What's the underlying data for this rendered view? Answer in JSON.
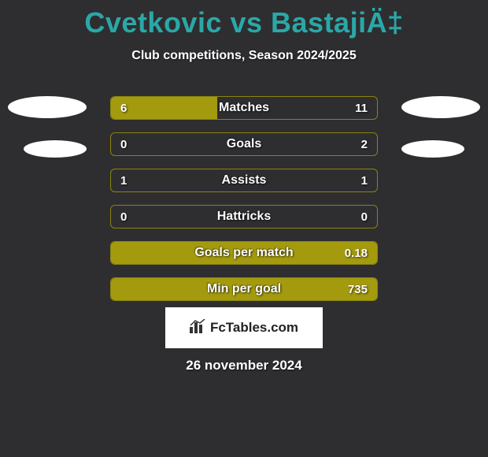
{
  "header": {
    "title": "Cvetkovic vs BastajiÄ‡",
    "subtitle": "Club competitions, Season 2024/2025"
  },
  "chart": {
    "type": "comparison-bars",
    "colors": {
      "bar_fill": "#a49a0e",
      "bar_border": "#8a8410",
      "background": "#2e2e30",
      "title": "#2aa8a8",
      "text": "#ffffff"
    },
    "rows": [
      {
        "label": "Matches",
        "left": "6",
        "right": "11",
        "left_pct": 40,
        "right_pct": 0
      },
      {
        "label": "Goals",
        "left": "0",
        "right": "2",
        "left_pct": 0,
        "right_pct": 0
      },
      {
        "label": "Assists",
        "left": "1",
        "right": "1",
        "left_pct": 0,
        "right_pct": 0
      },
      {
        "label": "Hattricks",
        "left": "0",
        "right": "0",
        "left_pct": 0,
        "right_pct": 0
      },
      {
        "label": "Goals per match",
        "left": "",
        "right": "0.18",
        "left_pct": 100,
        "right_pct": 0
      },
      {
        "label": "Min per goal",
        "left": "",
        "right": "735",
        "left_pct": 100,
        "right_pct": 0
      }
    ]
  },
  "footer": {
    "logo_text": "FcTables.com",
    "date": "26 november 2024"
  }
}
